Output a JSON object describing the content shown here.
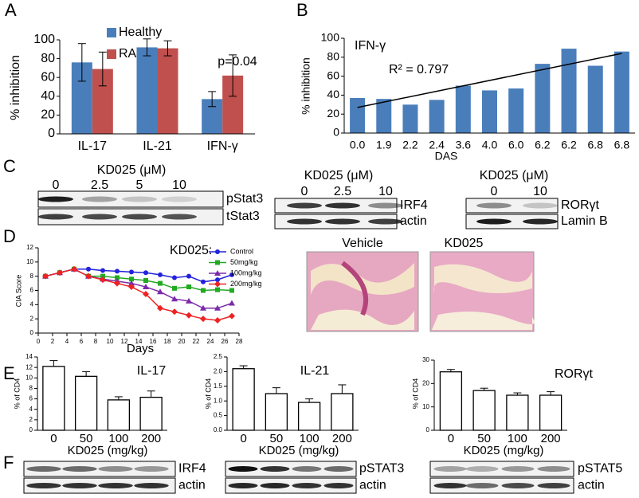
{
  "panel_labels": [
    "A",
    "B",
    "C",
    "D",
    "E",
    "F"
  ],
  "chart_data": [
    {
      "type": "bar",
      "ylabel": "% inhibition",
      "annotation": "p=0.04",
      "categories": [
        "IL-17",
        "IL-21",
        "IFN-γ"
      ],
      "series": [
        {
          "name": "Healthy",
          "color": "#4a7ebb",
          "values": [
            76,
            92,
            37
          ],
          "errors": [
            20,
            9,
            8
          ]
        },
        {
          "name": "RA",
          "color": "#c0504d",
          "values": [
            69,
            91,
            62
          ],
          "errors": [
            18,
            8,
            22
          ]
        }
      ],
      "ylim": [
        0,
        100
      ],
      "yticks": [
        0,
        20,
        40,
        60,
        80,
        100
      ]
    },
    {
      "type": "bar",
      "title": "IFN-γ",
      "annotation": "R² = 0.797",
      "xlabel": "DAS",
      "ylabel": "% inhibition",
      "categories": [
        "0.0",
        "1.9",
        "2.2",
        "2.4",
        "3.6",
        "4.0",
        "6.0",
        "6.2",
        "6.2",
        "6.8",
        "6.8"
      ],
      "values": [
        37,
        36,
        30,
        35,
        50,
        45,
        47,
        73,
        89,
        71,
        86
      ],
      "color": "#4a7ebb",
      "trendline": [
        27,
        84
      ],
      "ylim": [
        0,
        100
      ],
      "yticks": [
        0,
        20,
        40,
        60,
        80,
        100
      ]
    },
    {
      "type": "line",
      "xlabel": "Days",
      "ylabel": "CIA Score",
      "legend_title": "KD025:",
      "x": [
        1,
        3,
        5,
        7,
        9,
        11,
        13,
        15,
        17,
        19,
        21,
        23,
        25,
        27
      ],
      "series": [
        {
          "name": "Control",
          "color": "#2222dd",
          "values": [
            8,
            8.5,
            9,
            9,
            8.8,
            8.7,
            8.6,
            8.5,
            8.2,
            7.8,
            8.0,
            7.2,
            7.5,
            8.2
          ]
        },
        {
          "name": "50mg/kg",
          "color": "#22aa22",
          "values": [
            8,
            8.5,
            9,
            8,
            8,
            7.8,
            7.6,
            7.4,
            7,
            6.3,
            6.5,
            6,
            6.1,
            6
          ]
        },
        {
          "name": "100mg/kg",
          "color": "#7a2aa8",
          "values": [
            8,
            8.5,
            9,
            8,
            7.6,
            7.3,
            7,
            6.5,
            5.8,
            4.8,
            4.5,
            3.5,
            3.5,
            4.2
          ]
        },
        {
          "name": "200mg/kg",
          "color": "#ee2222",
          "values": [
            8,
            8.5,
            9,
            8,
            7.5,
            7,
            6.5,
            5.5,
            3.5,
            3,
            2.5,
            2,
            1.8,
            2.4
          ]
        }
      ],
      "xlim": [
        0,
        28
      ],
      "xticks": [
        0,
        2,
        4,
        6,
        8,
        10,
        12,
        14,
        16,
        18,
        20,
        22,
        24,
        26,
        28
      ],
      "ylim": [
        0,
        12
      ],
      "yticks": [
        0,
        2,
        4,
        6,
        8,
        10,
        12
      ]
    },
    {
      "type": "bar",
      "title": "IL-17",
      "xlabel": "KD025 (mg/kg)",
      "ylabel": "% of CD4",
      "categories": [
        "0",
        "50",
        "100",
        "200"
      ],
      "values": [
        12.2,
        10.3,
        5.8,
        6.3
      ],
      "errors": [
        1.1,
        0.9,
        0.6,
        1.2
      ],
      "color": "#ffffff",
      "ylim": [
        0,
        14
      ],
      "yticks": [
        0,
        2,
        4,
        6,
        8,
        10,
        12,
        14
      ]
    },
    {
      "type": "bar",
      "title": "IL-21",
      "xlabel": "KD025 (mg/kg)",
      "ylabel": "% of CD4",
      "categories": [
        "0",
        "50",
        "100",
        "200"
      ],
      "values": [
        2.1,
        1.25,
        0.95,
        1.25
      ],
      "errors": [
        0.1,
        0.2,
        0.12,
        0.3
      ],
      "color": "#ffffff",
      "ylim": [
        0,
        2.5
      ],
      "yticks": [
        {
          "value": 0,
          "label": "0.0"
        },
        0.5,
        {
          "value": 1,
          "label": "1.0"
        },
        1.5,
        {
          "value": 2,
          "label": "2.0"
        },
        2.5
      ]
    },
    {
      "type": "bar",
      "title": "RORγt",
      "xlabel": "KD025 (mg/kg)",
      "ylabel": "% of CD4",
      "categories": [
        "0",
        "50",
        "100",
        "200"
      ],
      "values": [
        25,
        17,
        15,
        15
      ],
      "errors": [
        1,
        1,
        1,
        1.5
      ],
      "color": "#ffffff",
      "ylim": [
        0,
        30
      ],
      "yticks": [
        0,
        10,
        20,
        30
      ]
    }
  ],
  "blots": [
    {
      "header": "KD025 (μM)",
      "lanes": [
        "0",
        "2.5",
        "5",
        "10"
      ],
      "rows": [
        "pStat3",
        "tStat3"
      ]
    },
    {
      "header": "KD025 (μM)",
      "lanes": [
        "0",
        "2.5",
        "10"
      ],
      "rows": [
        "IRF4",
        "actin"
      ]
    },
    {
      "header": "KD025 (μM)",
      "lanes": [
        "0",
        "10"
      ],
      "rows": [
        "RORγt",
        "Lamin B"
      ]
    },
    {
      "rows": [
        "IRF4",
        "actin"
      ]
    },
    {
      "rows": [
        "pSTAT3",
        "actin"
      ]
    },
    {
      "rows": [
        "pSTAT5",
        "actin"
      ]
    }
  ],
  "histology": [
    "Vehicle",
    "KD025"
  ]
}
